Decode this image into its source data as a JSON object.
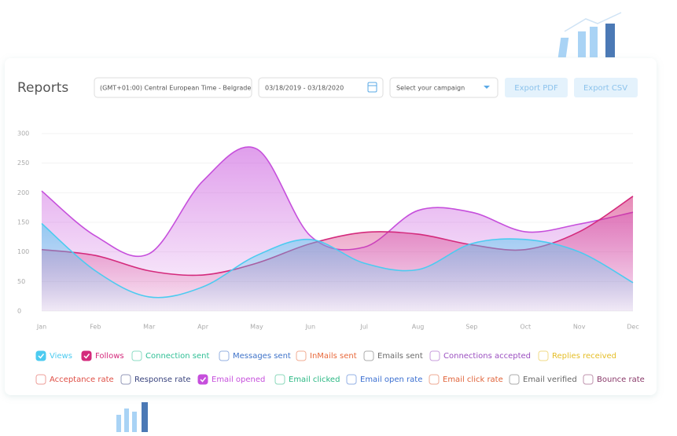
{
  "header": {
    "title": "Reports",
    "timezone": "(GMT+01:00) Central European Time - Belgrade",
    "date_range": "03/18/2019 - 03/18/2020",
    "campaign": "Select your campaign",
    "export_pdf": "Export PDF",
    "export_csv": "Export CSV"
  },
  "chart_data": {
    "type": "area",
    "categories": [
      "Jan",
      "Feb",
      "Mar",
      "Apr",
      "May",
      "Jun",
      "Jul",
      "Aug",
      "Sep",
      "Oct",
      "Nov",
      "Dec"
    ],
    "ylim": [
      0,
      300
    ],
    "yticks": [
      0,
      50,
      100,
      150,
      200,
      250,
      300
    ],
    "grid": true,
    "series": [
      {
        "name": "Views",
        "color": "#4ccbf0",
        "checked": true,
        "values": [
          148,
          68,
          24,
          41,
          94,
          121,
          81,
          70,
          114,
          121,
          100,
          48
        ]
      },
      {
        "name": "Follows",
        "color": "#d42a7c",
        "checked": true,
        "values": [
          104,
          94,
          68,
          61,
          81,
          114,
          133,
          130,
          112,
          104,
          134,
          194
        ]
      },
      {
        "name": "Connection sent",
        "color": "#2fbf95",
        "checked": false
      },
      {
        "name": "Messages sent",
        "color": "#3f73c9",
        "checked": false
      },
      {
        "name": "InMails sent",
        "color": "#e8683a",
        "checked": false
      },
      {
        "name": "Emails sent",
        "color": "#6b6b6b",
        "checked": false
      },
      {
        "name": "Connections accepted",
        "color": "#9b4fc0",
        "checked": false
      },
      {
        "name": "Replies received",
        "color": "#e5bd25",
        "checked": false
      },
      {
        "name": "Acceptance rate",
        "color": "#df4f46",
        "checked": false
      },
      {
        "name": "Response rate",
        "color": "#3a447e",
        "checked": false
      },
      {
        "name": "Email opened",
        "color": "#c64fdc",
        "checked": true,
        "values": [
          203,
          127,
          97,
          220,
          274,
          127,
          108,
          170,
          167,
          134,
          147,
          167
        ]
      },
      {
        "name": "Email clicked",
        "color": "#2bb884",
        "checked": false
      },
      {
        "name": "Email open rate",
        "color": "#3b6fd1",
        "checked": false
      },
      {
        "name": "Email click rate",
        "color": "#e0633a",
        "checked": false
      },
      {
        "name": "Email verified",
        "color": "#666666",
        "checked": false
      },
      {
        "name": "Bounce rate",
        "color": "#8a3a6a",
        "checked": false
      }
    ]
  }
}
